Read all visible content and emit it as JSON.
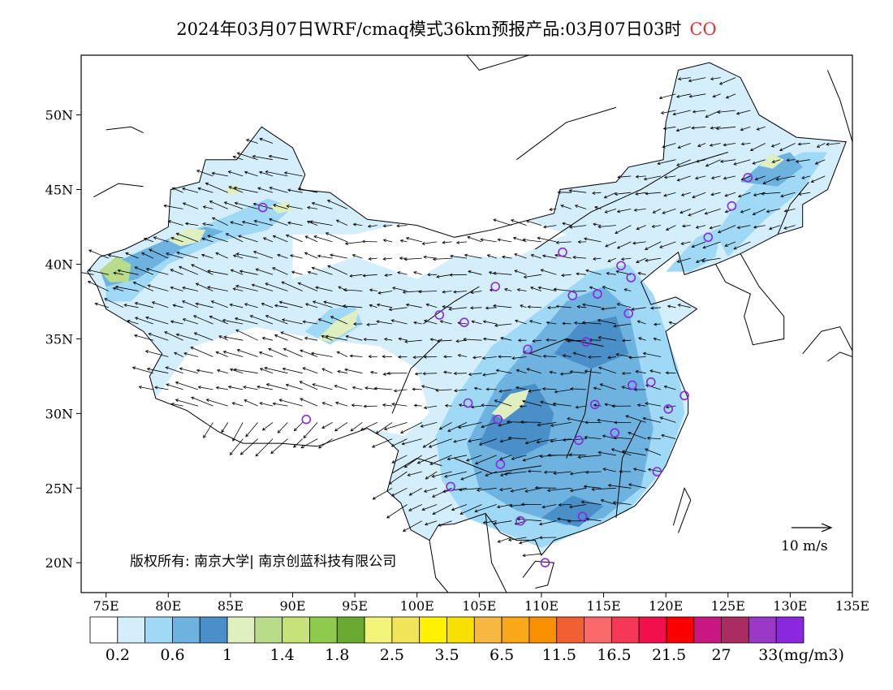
{
  "title": {
    "text": "2024年03月07日WRF/cmaq模式36km预报产品:03月07日03时",
    "species": "CO",
    "species_color": "#e53030"
  },
  "map": {
    "lon_range": [
      73,
      135
    ],
    "lat_range": [
      18,
      54
    ],
    "x_ticks": [
      "75E",
      "80E",
      "85E",
      "90E",
      "95E",
      "100E",
      "105E",
      "110E",
      "115E",
      "120E",
      "125E",
      "130E",
      "135E"
    ],
    "y_ticks": [
      "20N",
      "25N",
      "30N",
      "35N",
      "40N",
      "45N",
      "50N"
    ],
    "copyright": "版权所有: 南京大学| 南京创蓝科技有限公司",
    "wind_reference": "10 m/s"
  },
  "colorbar": {
    "colors": [
      "#ffffff",
      "#d4eefb",
      "#9fd9f5",
      "#6eb3e0",
      "#4a8fc8",
      "#dfefc0",
      "#b8dc8a",
      "#c6e27a",
      "#8fca4c",
      "#6aaa32",
      "#f3f57a",
      "#f0e45a",
      "#fff200",
      "#f8e000",
      "#f6b840",
      "#f8a818",
      "#f89000",
      "#f06030",
      "#fb6a6a",
      "#f53858",
      "#f0104c",
      "#fa0000",
      "#c81880",
      "#a82c60",
      "#9a38c8",
      "#8a28e0"
    ],
    "labels": [
      "0.2",
      "0.6",
      "1",
      "1.4",
      "1.8",
      "2.5",
      "3.5",
      "6.5",
      "11.5",
      "16.5",
      "21.5",
      "27",
      "33(mg/m3)"
    ],
    "label_color": "#000000"
  },
  "colors": {
    "light_blue": "#d4eefb",
    "mid_blue": "#9fd9f5",
    "blue": "#6eb3e0",
    "dark_blue": "#4a8fc8",
    "pale_green": "#dfefc0",
    "green": "#b8dc8a",
    "station_ring": "#8a28e0",
    "arrow": "#000000"
  }
}
